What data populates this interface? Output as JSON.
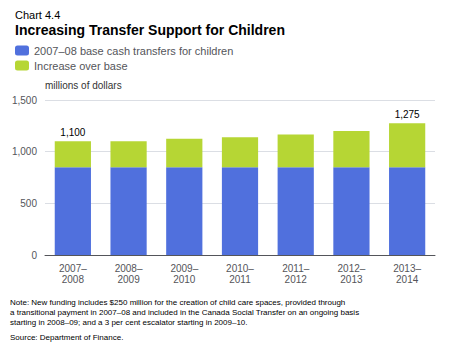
{
  "chart_data": {
    "type": "bar",
    "subtitle": "Chart 4.4",
    "title": "Increasing Transfer Support for Children",
    "ylabel": "millions of dollars",
    "categories": [
      "2007–\n2008",
      "2008–\n2009",
      "2009–\n2010",
      "2010–\n2011",
      "2011–\n2012",
      "2012–\n2013",
      "2013–\n2014"
    ],
    "series": [
      {
        "name": "2007–08 base cash transfers for children",
        "values": [
          850,
          850,
          850,
          850,
          850,
          850,
          850
        ]
      },
      {
        "name": "Increase over base",
        "values": [
          250,
          250,
          275,
          290,
          315,
          350,
          425
        ]
      }
    ],
    "stacked": true,
    "ylim": [
      0,
      1500
    ],
    "yticks": [
      0,
      500,
      {
        "value": 1000,
        "label": "1,000"
      },
      {
        "value": 1500,
        "label": "1,500"
      }
    ],
    "grid": true,
    "legend": "upper left",
    "annotations": [
      {
        "category": "2007–\n2008",
        "value": 1100,
        "text": "1,100"
      },
      {
        "category": "2013–\n2014",
        "value": 1275,
        "text": "1,275"
      }
    ],
    "note": "Note: New funding includes $250 million for the creation of child care spaces, provided through\na transitional payment in 2007–08 and included in the Canada Social Transfer on an ongoing basis\nstarting in 2008–09; and a 3 per cent escalator starting in 2009–10.",
    "source": "Source: Department of Finance."
  }
}
